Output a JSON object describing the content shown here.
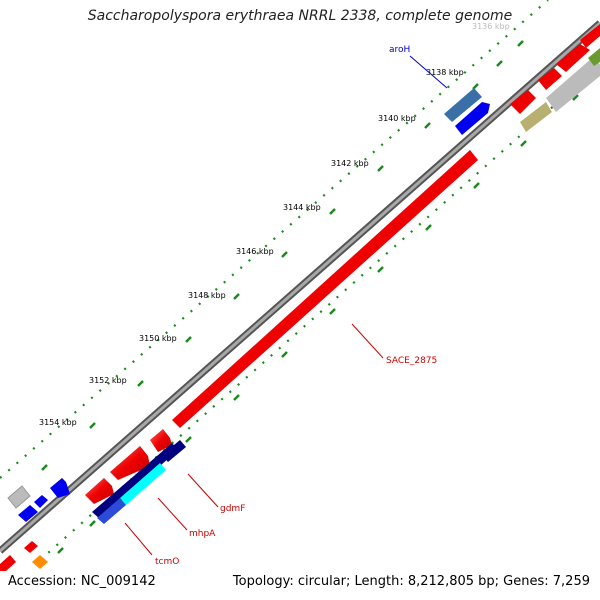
{
  "title": "Saccharopolyspora erythraea NRRL 2338, complete genome",
  "footer": {
    "accession": "Accession: NC_009142",
    "stats": "Topology: circular; Length: 8,212,805 bp; Genes: 7,259"
  },
  "ticks": [
    {
      "label": "3136 kbp",
      "faded": true
    },
    {
      "label": "3138 kbp"
    },
    {
      "label": "3140 kbp"
    },
    {
      "label": "3142 kbp"
    },
    {
      "label": "3144 kbp"
    },
    {
      "label": "3146 kbp"
    },
    {
      "label": "3148 kbp"
    },
    {
      "label": "3150 kbp"
    },
    {
      "label": "3152 kbp"
    },
    {
      "label": "3154 kbp"
    }
  ],
  "gene_labels": [
    {
      "name": "aroH",
      "color": "#0000cc"
    },
    {
      "name": "SACE_2875",
      "color": "#cc0000"
    },
    {
      "name": "gdmF",
      "color": "#cc0000"
    },
    {
      "name": "mhpA",
      "color": "#cc0000"
    },
    {
      "name": "tcmO",
      "color": "#cc0000"
    }
  ],
  "colors": {
    "forward_cds": "#ff0000",
    "reverse_cds": "#0000ee",
    "backbone": "#777777",
    "tick_marks": "#1a8a1a",
    "misc_gray": "#bbbbbb",
    "olive": "#b8b070",
    "steel_blue": "#3a6fa8",
    "navy": "#000080",
    "cyan": "#00ffff",
    "orange": "#ff8c00",
    "green": "#6a9a30"
  }
}
